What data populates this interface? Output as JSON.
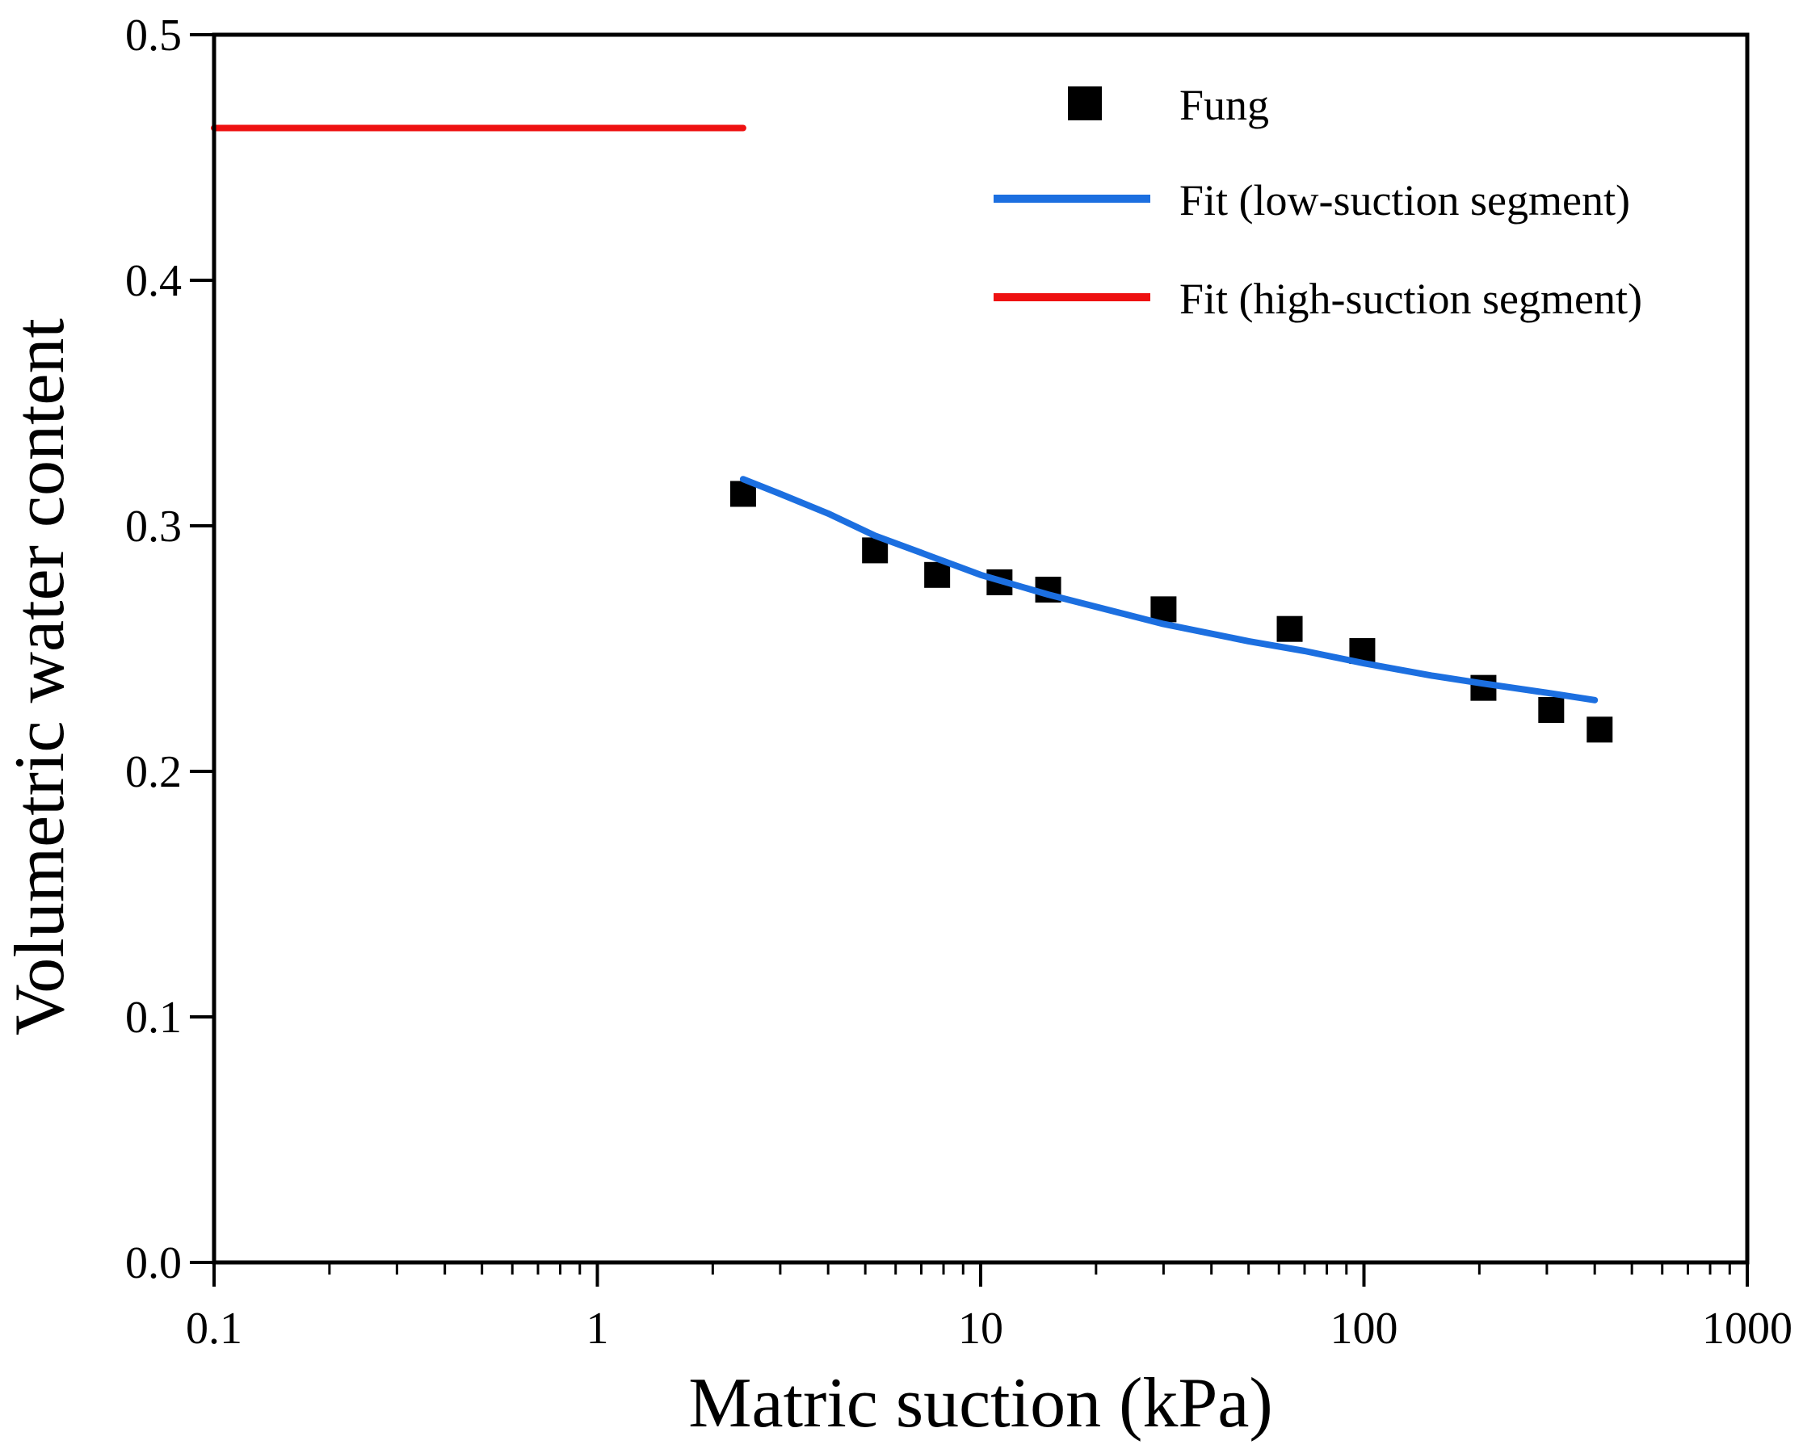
{
  "chart_data": {
    "type": "scatter",
    "xscale": "log",
    "xlabel": "Matric suction (kPa)",
    "ylabel": "Volumetric water content",
    "xlim": [
      0.1,
      1000
    ],
    "ylim": [
      0.0,
      0.5
    ],
    "x_ticks": [
      {
        "value": 0.1,
        "label": "0.1"
      },
      {
        "value": 1,
        "label": "1"
      },
      {
        "value": 10,
        "label": "10"
      },
      {
        "value": 100,
        "label": "100"
      },
      {
        "value": 1000,
        "label": "1000"
      }
    ],
    "y_ticks": [
      {
        "value": 0.0,
        "label": "0.0"
      },
      {
        "value": 0.1,
        "label": "0.1"
      },
      {
        "value": 0.2,
        "label": "0.2"
      },
      {
        "value": 0.3,
        "label": "0.3"
      },
      {
        "value": 0.4,
        "label": "0.4"
      },
      {
        "value": 0.5,
        "label": "0.5"
      }
    ],
    "legend_position": "top-right",
    "series": [
      {
        "name": "Fung",
        "kind": "scatter",
        "marker": "square",
        "color": "#000000",
        "points": [
          {
            "x": 2.4,
            "y": 0.313
          },
          {
            "x": 5.3,
            "y": 0.29
          },
          {
            "x": 7.7,
            "y": 0.28
          },
          {
            "x": 11.2,
            "y": 0.277
          },
          {
            "x": 15,
            "y": 0.274
          },
          {
            "x": 30,
            "y": 0.266
          },
          {
            "x": 64,
            "y": 0.258
          },
          {
            "x": 99,
            "y": 0.249
          },
          {
            "x": 205,
            "y": 0.234
          },
          {
            "x": 308,
            "y": 0.225
          },
          {
            "x": 412,
            "y": 0.217
          }
        ]
      },
      {
        "name": "Fit (low-suction segment)",
        "kind": "line",
        "color": "#1c6fe0",
        "points": [
          {
            "x": 2.4,
            "y": 0.319
          },
          {
            "x": 3,
            "y": 0.313
          },
          {
            "x": 4,
            "y": 0.305
          },
          {
            "x": 5.3,
            "y": 0.296
          },
          {
            "x": 7,
            "y": 0.289
          },
          {
            "x": 10,
            "y": 0.28
          },
          {
            "x": 15,
            "y": 0.272
          },
          {
            "x": 20,
            "y": 0.267
          },
          {
            "x": 30,
            "y": 0.26
          },
          {
            "x": 50,
            "y": 0.253
          },
          {
            "x": 70,
            "y": 0.249
          },
          {
            "x": 100,
            "y": 0.244
          },
          {
            "x": 150,
            "y": 0.239
          },
          {
            "x": 200,
            "y": 0.236
          },
          {
            "x": 300,
            "y": 0.232
          },
          {
            "x": 400,
            "y": 0.229
          }
        ]
      },
      {
        "name": "Fit (high-suction segment)",
        "kind": "line",
        "color": "#ee1111",
        "points": [
          {
            "x": 0.1,
            "y": 0.462
          },
          {
            "x": 2.4,
            "y": 0.462
          }
        ]
      }
    ]
  }
}
